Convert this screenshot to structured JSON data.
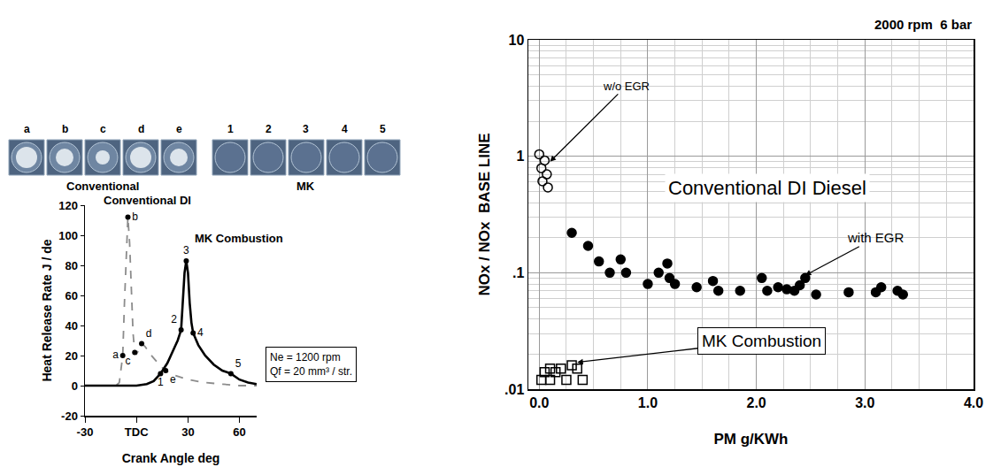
{
  "chart_data": [
    {
      "type": "line",
      "xlabel": "Crank Angle deg",
      "ylabel": "Heat Release Rate J / de",
      "xlim": [
        -30,
        70
      ],
      "xticks": [
        -30,
        {
          "value": 0,
          "label": "TDC"
        },
        30,
        60
      ],
      "ylim": [
        -20,
        120
      ],
      "yticks": [
        -20,
        0,
        20,
        40,
        60,
        80,
        100,
        120
      ],
      "grid": false,
      "series": [
        {
          "name": "Conventional DI",
          "color": "#8c8c8c",
          "line_style": "dash",
          "x": [
            -30,
            -20,
            -12,
            -10,
            -8,
            -7,
            -6,
            -5,
            -4,
            -3,
            -2,
            -1,
            0,
            1,
            3,
            5,
            8,
            11,
            14,
            17,
            22,
            30,
            40,
            50,
            60,
            70
          ],
          "values": [
            0,
            0,
            0,
            2,
            20,
            55,
            90,
            112,
            95,
            60,
            35,
            22,
            21,
            23,
            28,
            26,
            21,
            17,
            13,
            10,
            7,
            4,
            2,
            1,
            0,
            0
          ],
          "points": [
            {
              "label": "a",
              "x": -8,
              "y": 20
            },
            {
              "label": "b",
              "x": -5,
              "y": 112
            },
            {
              "label": "c",
              "x": -1,
              "y": 22
            },
            {
              "label": "d",
              "x": 3,
              "y": 28
            },
            {
              "label": "e",
              "x": 17,
              "y": 10
            }
          ]
        },
        {
          "name": "MK Combustion",
          "color": "#000000",
          "line_style": "solid",
          "x": [
            -30,
            0,
            6,
            10,
            14,
            18,
            22,
            24,
            26,
            27,
            28,
            29,
            30,
            31,
            32,
            33,
            36,
            40,
            45,
            50,
            55,
            60,
            65,
            70
          ],
          "values": [
            0,
            0,
            1,
            3,
            8,
            15,
            25,
            30,
            37,
            55,
            75,
            83,
            75,
            55,
            42,
            35,
            27,
            20,
            14,
            10,
            8,
            4,
            2,
            1
          ],
          "points": [
            {
              "label": "1",
              "x": 14,
              "y": 8
            },
            {
              "label": "2",
              "x": 26,
              "y": 37
            },
            {
              "label": "3",
              "x": 29,
              "y": 83
            },
            {
              "label": "4",
              "x": 33,
              "y": 35
            },
            {
              "label": "5",
              "x": 55,
              "y": 8
            }
          ]
        }
      ],
      "annotations": [
        {
          "lines": [
            "Ne = 1200 rpm",
            "Qf = 20 mm³ / str."
          ]
        }
      ]
    },
    {
      "type": "scatter",
      "title": "2000 rpm  6 bar",
      "xlabel": "PM g/KWh",
      "ylabel": "NOx / NOx  BASE LINE",
      "log": "y",
      "grid": true,
      "xlim": [
        -0.1,
        4.0
      ],
      "xticks": [
        {
          "value": 0,
          "label": "0.0"
        },
        {
          "value": 1,
          "label": "1.0"
        },
        {
          "value": 2,
          "label": "2.0"
        },
        {
          "value": 3,
          "label": "3.0"
        },
        {
          "value": 4,
          "label": "4.0"
        }
      ],
      "ylim": [
        0.01,
        10
      ],
      "yticks": [
        {
          "value": 0.01,
          "label": ".01"
        },
        {
          "value": 0.1,
          "label": ".1"
        },
        1,
        10
      ],
      "series": [
        {
          "name": "w/o EGR",
          "marker": "circle-open",
          "color": "#000000",
          "x": [
            0.0,
            0.05,
            0.02,
            0.07,
            0.03,
            0.08
          ],
          "values": [
            1.04,
            0.92,
            0.79,
            0.7,
            0.61,
            0.54
          ],
          "label_xy": [
            0.8,
            4.0
          ],
          "target": [
            0.1,
            0.9
          ]
        },
        {
          "name": "with EGR",
          "marker": "circle",
          "color": "#000000",
          "x": [
            0.3,
            0.45,
            0.55,
            0.75,
            0.65,
            0.8,
            1.0,
            1.1,
            1.18,
            1.2,
            1.25,
            1.45,
            1.6,
            1.65,
            1.85,
            2.05,
            2.1,
            2.2,
            2.28,
            2.35,
            2.4,
            2.45,
            2.55,
            2.85,
            3.1,
            3.15,
            3.3,
            3.35
          ],
          "values": [
            0.22,
            0.17,
            0.125,
            0.13,
            0.1,
            0.1,
            0.08,
            0.1,
            0.12,
            0.09,
            0.08,
            0.075,
            0.085,
            0.07,
            0.07,
            0.09,
            0.07,
            0.075,
            0.072,
            0.07,
            0.078,
            0.09,
            0.065,
            0.068,
            0.068,
            0.075,
            0.07,
            0.065
          ],
          "label_xy": [
            3.1,
            0.2
          ],
          "target": [
            2.45,
            0.095
          ]
        },
        {
          "name": "MK Combustion",
          "marker": "square-open",
          "color": "#000000",
          "x": [
            0.02,
            0.05,
            0.1,
            0.15,
            0.2,
            0.3,
            0.35,
            0.25,
            0.4,
            0.1
          ],
          "values": [
            0.012,
            0.014,
            0.015,
            0.014,
            0.015,
            0.016,
            0.015,
            0.012,
            0.012,
            0.012
          ],
          "label_xy": [
            2.05,
            0.026
          ],
          "target": [
            0.35,
            0.017
          ]
        }
      ],
      "hlines": [
        0.3
      ],
      "annotations": [
        {
          "text": "Conventional DI Diesel",
          "x": 2.1,
          "y": 0.53
        }
      ]
    }
  ],
  "photo_strips": [
    {
      "title": "Conventional",
      "labels": [
        "a",
        "b",
        "c",
        "d",
        "e"
      ]
    },
    {
      "title": "MK",
      "labels": [
        "1",
        "2",
        "3",
        "4",
        "5"
      ]
    }
  ]
}
